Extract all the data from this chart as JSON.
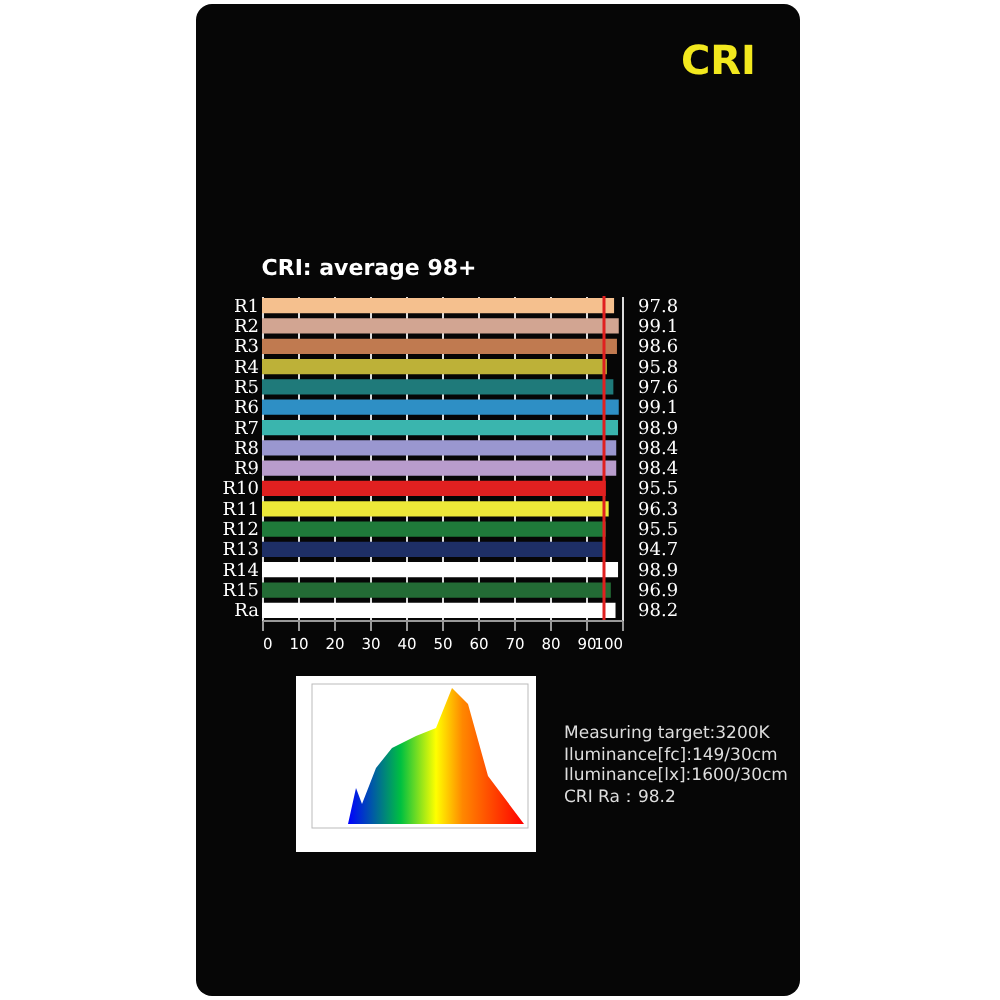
{
  "chart_data": {
    "type": "bar",
    "orientation": "horizontal",
    "title": "CRI",
    "subtitle": "CRI: average 98+",
    "categories": [
      "R1",
      "R2",
      "R3",
      "R4",
      "R5",
      "R6",
      "R7",
      "R8",
      "R9",
      "R10",
      "R11",
      "R12",
      "R13",
      "R14",
      "R15",
      "Ra"
    ],
    "values": [
      97.8,
      99.1,
      98.6,
      95.8,
      97.6,
      99.1,
      98.9,
      98.4,
      98.4,
      95.5,
      96.3,
      95.5,
      94.7,
      98.9,
      96.9,
      98.2
    ],
    "colors": [
      "#f5c08e",
      "#d2a592",
      "#c07a50",
      "#bdb138",
      "#1f7a7a",
      "#2e8fc5",
      "#3ab5ae",
      "#9a97d0",
      "#b89ccc",
      "#e02020",
      "#ece838",
      "#1f7a3a",
      "#1e2f66",
      "#ffffff",
      "#236b35",
      "#ffffff"
    ],
    "xlim": [
      0,
      100
    ],
    "xticks": [
      0,
      10,
      20,
      30,
      40,
      50,
      60,
      70,
      80,
      90,
      100
    ],
    "grid": "x",
    "value_labels": [
      "97.8",
      "99.1",
      "98.6",
      "95.8",
      "97.6",
      "99.1",
      "98.9",
      "98.4",
      "98.4",
      "95.5",
      "96.3",
      "95.5",
      "94.7",
      "98.9",
      "96.9",
      "98.2"
    ],
    "ref_lines": [
      {
        "axis": "x",
        "value": 95,
        "color": "#e02020"
      }
    ],
    "annotations": [
      "Measuring target:3200K",
      "Iluminance[fc]:149/30cm",
      "Iluminance[lx]:1600/30cm",
      "CRI Ra：98.2"
    ]
  }
}
